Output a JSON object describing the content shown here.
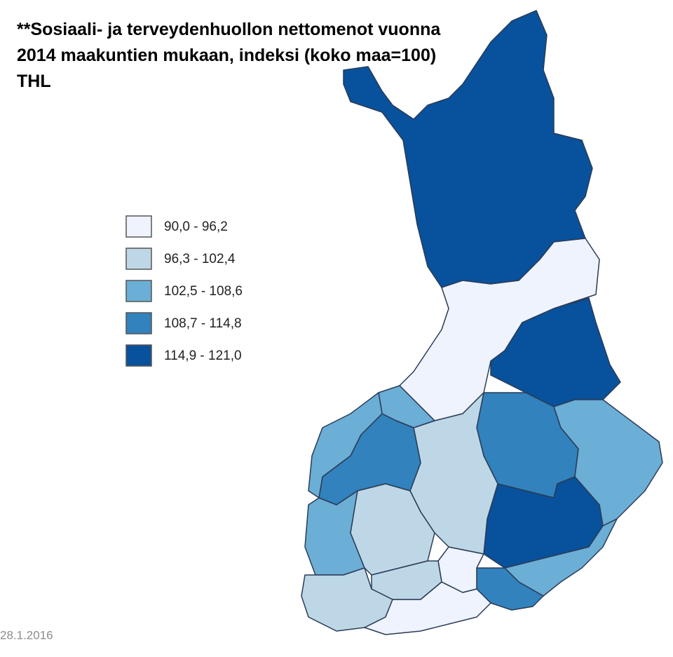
{
  "title_lines": [
    "**Sosiaali- ja terveydenhuollon nettomenot vuonna",
    "2014 maakuntien mukaan, indeksi (koko maa=100)",
    "THL"
  ],
  "legend": [
    {
      "label": "90,0 - 96,2",
      "color": "#eef3fd"
    },
    {
      "label": "96,3 - 102,4",
      "color": "#bdd7e7"
    },
    {
      "label": "102,5 - 108,6",
      "color": "#6baed6"
    },
    {
      "label": "108,7 - 114,8",
      "color": "#3182bd"
    },
    {
      "label": "114,9 - 121,0",
      "color": "#08519c"
    }
  ],
  "date": "28.1.2016"
}
